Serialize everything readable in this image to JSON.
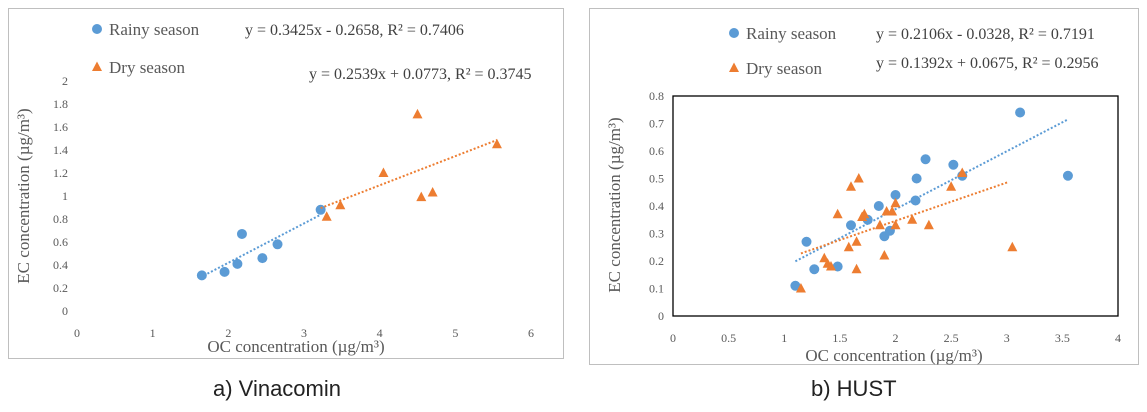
{
  "captions": [
    "a) Vinacomin",
    "b) HUST"
  ],
  "colors": {
    "rainy": "#5b9bd5",
    "dry": "#ed7d31"
  },
  "chart_data": [
    {
      "type": "scatter",
      "panel": "a",
      "xlabel": "OC concentration (µg/m³)",
      "ylabel": "EC concentration (µg/m³)",
      "xlim": [
        0,
        6
      ],
      "ylim": [
        0,
        2
      ],
      "xticks": [
        0,
        1,
        2,
        3,
        4,
        5,
        6
      ],
      "xtick_labels": [
        "0",
        "1",
        "2",
        "3",
        "4",
        "5",
        "6"
      ],
      "yticks": [
        0,
        0.2,
        0.4,
        0.6,
        0.8,
        1,
        1.2,
        1.4,
        1.6,
        1.8,
        2
      ],
      "ytick_labels": [
        "0",
        "0.2",
        "0.4",
        "0.6",
        "0.8",
        "1",
        "1.2",
        "1.4",
        "1.6",
        "1.8",
        "2"
      ],
      "grid": false,
      "legend_position": "top",
      "series": [
        {
          "name": "Rainy season",
          "marker": "circle",
          "equation": "y = 0.3425x - 0.2658,  R² = 0.7406",
          "trend": {
            "slope": 0.3425,
            "intercept": -0.2658,
            "x_range": [
              1.63,
              3.22
            ]
          },
          "points": [
            [
              1.65,
              0.31
            ],
            [
              1.95,
              0.34
            ],
            [
              2.12,
              0.41
            ],
            [
              2.18,
              0.67
            ],
            [
              2.45,
              0.46
            ],
            [
              2.65,
              0.58
            ],
            [
              3.22,
              0.88
            ]
          ]
        },
        {
          "name": "Dry season",
          "marker": "triangle",
          "equation": "y = 0.2539x + 0.0773,  R² = 0.3745",
          "trend": {
            "slope": 0.2539,
            "intercept": 0.0773,
            "x_range": [
              3.22,
              5.55
            ]
          },
          "points": [
            [
              3.3,
              0.82
            ],
            [
              3.48,
              0.92
            ],
            [
              4.05,
              1.2
            ],
            [
              4.5,
              1.71
            ],
            [
              4.55,
              0.99
            ],
            [
              4.7,
              1.03
            ],
            [
              5.55,
              1.45
            ]
          ]
        }
      ]
    },
    {
      "type": "scatter",
      "panel": "b",
      "xlabel": "OC concentration (µg/m³)",
      "ylabel": "EC concentration (µg/m³)",
      "xlim": [
        0,
        4
      ],
      "ylim": [
        0,
        0.8
      ],
      "xticks": [
        0,
        0.5,
        1,
        1.5,
        2,
        2.5,
        3,
        3.5,
        4
      ],
      "xtick_labels": [
        "0",
        "0.5",
        "1",
        "1.5",
        "2",
        "2.5",
        "3",
        "3.5",
        "4"
      ],
      "yticks": [
        0,
        0.1,
        0.2,
        0.3,
        0.4,
        0.5,
        0.6,
        0.7,
        0.8
      ],
      "ytick_labels": [
        "0",
        "0.1",
        "0.2",
        "0.3",
        "0.4",
        "0.5",
        "0.6",
        "0.7",
        "0.8"
      ],
      "grid": false,
      "legend_position": "top",
      "series": [
        {
          "name": "Rainy season",
          "marker": "circle",
          "equation": "y = 0.2106x - 0.0328,  R² = 0.7191",
          "trend": {
            "slope": 0.2106,
            "intercept": -0.0328,
            "x_range": [
              1.1,
              3.55
            ]
          },
          "points": [
            [
              1.1,
              0.11
            ],
            [
              1.2,
              0.27
            ],
            [
              1.27,
              0.17
            ],
            [
              1.48,
              0.18
            ],
            [
              1.6,
              0.33
            ],
            [
              1.75,
              0.35
            ],
            [
              1.85,
              0.4
            ],
            [
              1.9,
              0.29
            ],
            [
              1.95,
              0.31
            ],
            [
              2.0,
              0.44
            ],
            [
              2.18,
              0.42
            ],
            [
              2.19,
              0.5
            ],
            [
              2.27,
              0.57
            ],
            [
              2.52,
              0.55
            ],
            [
              2.6,
              0.51
            ],
            [
              3.12,
              0.74
            ],
            [
              3.55,
              0.51
            ]
          ]
        },
        {
          "name": "Dry season",
          "marker": "triangle",
          "equation": "y = 0.1392x + 0.0675,  R² = 0.2956",
          "trend": {
            "slope": 0.1392,
            "intercept": 0.0675,
            "x_range": [
              1.15,
              3.02
            ]
          },
          "points": [
            [
              1.15,
              0.1
            ],
            [
              1.36,
              0.21
            ],
            [
              1.39,
              0.19
            ],
            [
              1.42,
              0.18
            ],
            [
              1.48,
              0.37
            ],
            [
              1.58,
              0.25
            ],
            [
              1.6,
              0.47
            ],
            [
              1.65,
              0.27
            ],
            [
              1.65,
              0.17
            ],
            [
              1.67,
              0.5
            ],
            [
              1.7,
              0.36
            ],
            [
              1.72,
              0.37
            ],
            [
              1.86,
              0.33
            ],
            [
              1.9,
              0.22
            ],
            [
              1.92,
              0.38
            ],
            [
              1.97,
              0.38
            ],
            [
              2.0,
              0.41
            ],
            [
              2.0,
              0.33
            ],
            [
              2.15,
              0.35
            ],
            [
              2.3,
              0.33
            ],
            [
              2.5,
              0.47
            ],
            [
              2.6,
              0.52
            ],
            [
              3.05,
              0.25
            ]
          ]
        }
      ]
    }
  ]
}
